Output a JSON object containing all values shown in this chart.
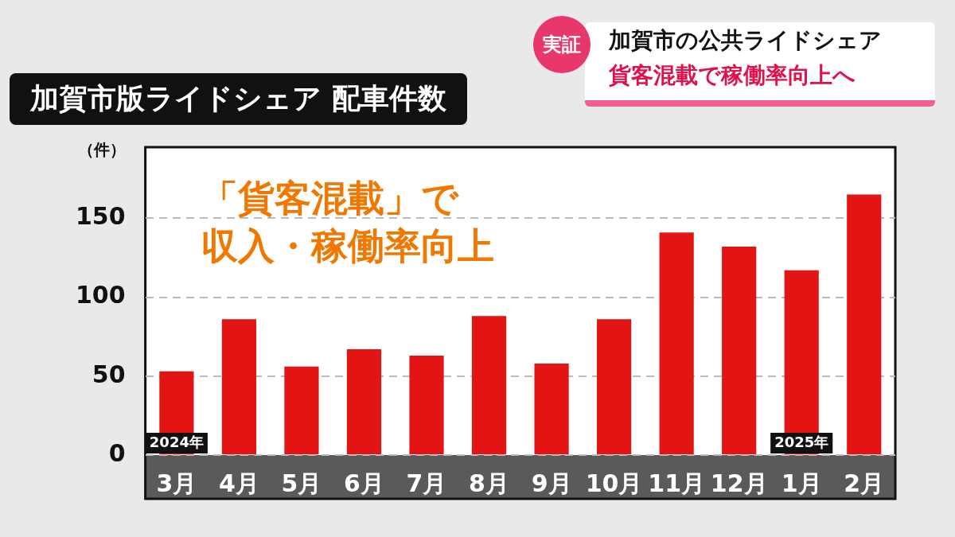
{
  "chart_data": {
    "type": "bar",
    "title": "加賀市版ライドシェア 配車件数",
    "subtitle": "加賀市の公共ライドシェア",
    "ylabel": "（件）",
    "categories": [
      "3月",
      "4月",
      "5月",
      "6月",
      "7月",
      "8月",
      "9月",
      "10月",
      "11月",
      "12月",
      "1月",
      "2月"
    ],
    "values": [
      53,
      86,
      56,
      67,
      63,
      88,
      58,
      86,
      141,
      132,
      117,
      165
    ],
    "color": "#e31414",
    "ylim": [
      0,
      195
    ],
    "yticks": [
      0,
      50,
      100,
      150
    ],
    "grid": "y",
    "annotations": [
      "実証",
      "貨客混載で稼働率向上へ",
      "「貨客混載」で",
      "収入・稼働率向上",
      {
        "text": "2024年",
        "x": "3月",
        "y": 0
      },
      {
        "text": "2025年",
        "x": "1月",
        "y": 0
      }
    ]
  }
}
